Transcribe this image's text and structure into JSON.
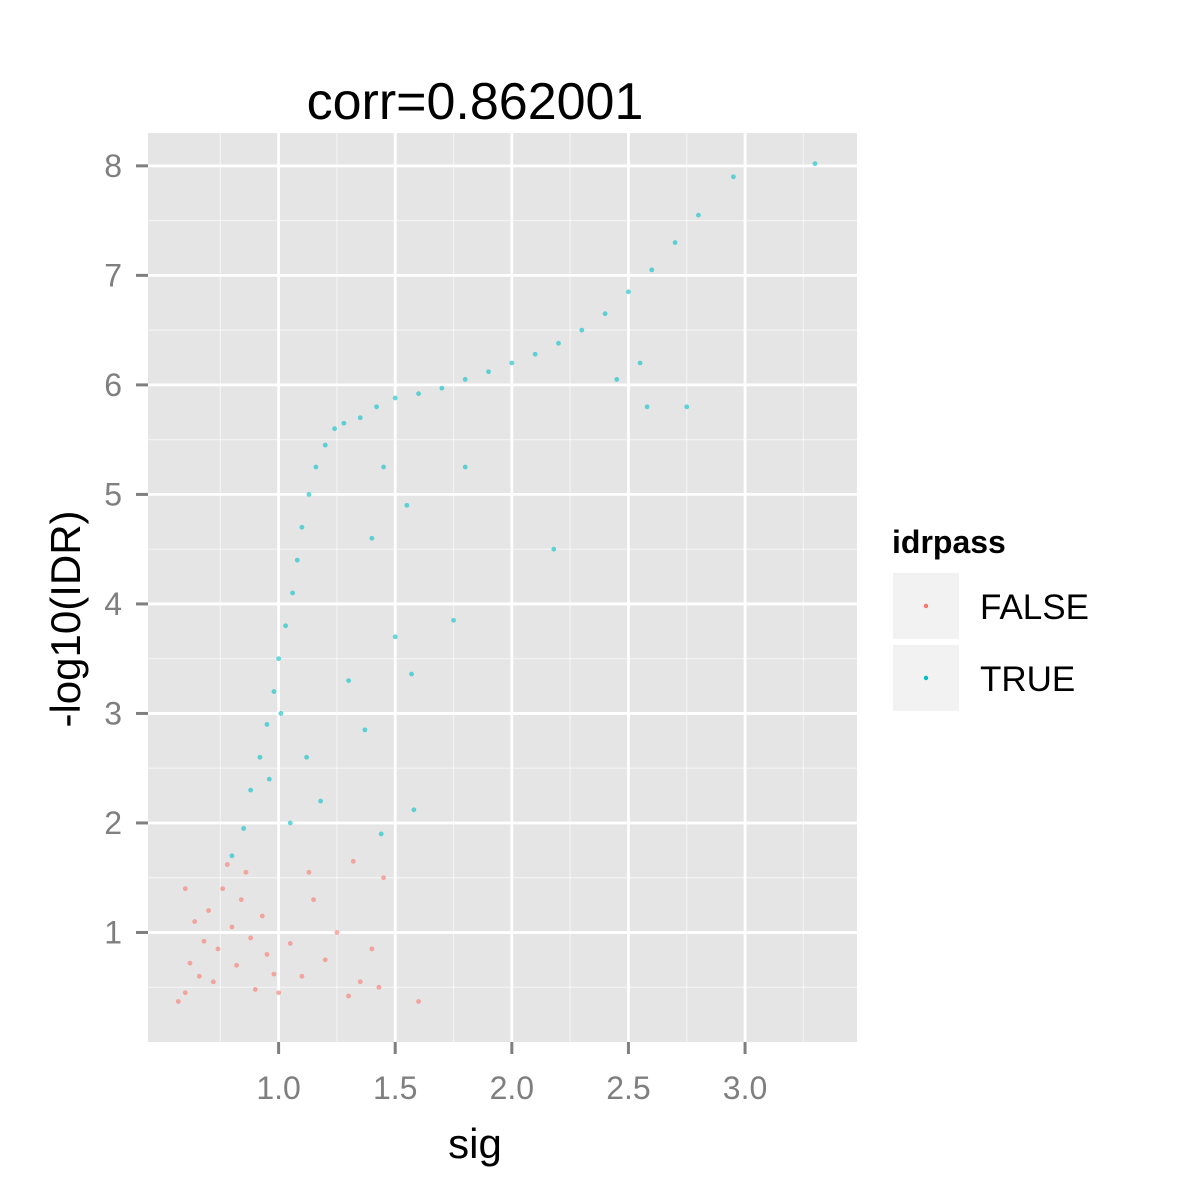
{
  "chart_data": {
    "type": "scatter",
    "title": "corr=0.862001",
    "xlabel": "sig",
    "ylabel": "-log10(IDR)",
    "xlim": [
      0.44,
      3.48
    ],
    "ylim": [
      0.0,
      8.3
    ],
    "x_ticks": [
      1.0,
      1.5,
      2.0,
      2.5,
      3.0
    ],
    "x_tick_labels": [
      "1.0",
      "1.5",
      "2.0",
      "2.5",
      "3.0"
    ],
    "y_ticks": [
      1,
      2,
      3,
      4,
      5,
      6,
      7,
      8
    ],
    "y_tick_labels": [
      "1",
      "2",
      "3",
      "4",
      "5",
      "6",
      "7",
      "8"
    ],
    "grid": true,
    "panel_background": "#e5e5e5",
    "grid_color": "#ffffff",
    "legend": {
      "title": "idrpass",
      "position": "right",
      "entries": [
        {
          "label": "FALSE",
          "color": "#f8766d"
        },
        {
          "label": "TRUE",
          "color": "#00bfc4"
        }
      ]
    },
    "series": [
      {
        "name": "FALSE",
        "color": "#f8766d",
        "points": [
          [
            0.57,
            0.37
          ],
          [
            0.6,
            0.45
          ],
          [
            0.62,
            0.72
          ],
          [
            0.64,
            1.1
          ],
          [
            0.66,
            0.6
          ],
          [
            0.68,
            0.92
          ],
          [
            0.7,
            1.2
          ],
          [
            0.72,
            0.55
          ],
          [
            0.74,
            0.85
          ],
          [
            0.76,
            1.4
          ],
          [
            0.78,
            1.62
          ],
          [
            0.8,
            1.05
          ],
          [
            0.82,
            0.7
          ],
          [
            0.84,
            1.3
          ],
          [
            0.86,
            1.55
          ],
          [
            0.88,
            0.95
          ],
          [
            0.9,
            0.48
          ],
          [
            0.93,
            1.15
          ],
          [
            0.95,
            0.8
          ],
          [
            0.98,
            0.62
          ],
          [
            1.0,
            0.45
          ],
          [
            1.05,
            0.9
          ],
          [
            1.1,
            0.6
          ],
          [
            1.15,
            1.3
          ],
          [
            1.2,
            0.75
          ],
          [
            1.25,
            1.0
          ],
          [
            1.3,
            0.42
          ],
          [
            1.35,
            0.55
          ],
          [
            1.4,
            0.85
          ],
          [
            1.43,
            0.5
          ],
          [
            1.6,
            0.37
          ],
          [
            1.45,
            1.5
          ],
          [
            1.32,
            1.65
          ],
          [
            1.13,
            1.55
          ],
          [
            0.6,
            1.4
          ]
        ]
      },
      {
        "name": "TRUE",
        "color": "#00bfc4",
        "points": [
          [
            0.8,
            1.7
          ],
          [
            0.85,
            1.95
          ],
          [
            0.88,
            2.3
          ],
          [
            0.92,
            2.6
          ],
          [
            0.95,
            2.9
          ],
          [
            0.98,
            3.2
          ],
          [
            1.0,
            3.5
          ],
          [
            1.03,
            3.8
          ],
          [
            1.06,
            4.1
          ],
          [
            1.08,
            4.4
          ],
          [
            1.1,
            4.7
          ],
          [
            1.13,
            5.0
          ],
          [
            1.16,
            5.25
          ],
          [
            1.2,
            5.45
          ],
          [
            1.24,
            5.6
          ],
          [
            1.28,
            5.65
          ],
          [
            1.35,
            5.7
          ],
          [
            1.42,
            5.8
          ],
          [
            1.5,
            5.88
          ],
          [
            1.6,
            5.92
          ],
          [
            1.7,
            5.97
          ],
          [
            1.8,
            6.05
          ],
          [
            1.9,
            6.12
          ],
          [
            2.0,
            6.2
          ],
          [
            2.1,
            6.28
          ],
          [
            2.2,
            6.38
          ],
          [
            2.3,
            6.5
          ],
          [
            2.4,
            6.65
          ],
          [
            2.5,
            6.85
          ],
          [
            2.6,
            7.05
          ],
          [
            2.7,
            7.3
          ],
          [
            2.8,
            7.55
          ],
          [
            2.95,
            7.9
          ],
          [
            3.3,
            8.02
          ],
          [
            2.58,
            5.8
          ],
          [
            2.75,
            5.8
          ],
          [
            2.18,
            4.5
          ],
          [
            1.75,
            3.85
          ],
          [
            1.58,
            2.12
          ],
          [
            1.57,
            3.36
          ],
          [
            1.5,
            3.7
          ],
          [
            1.44,
            1.9
          ],
          [
            1.37,
            2.85
          ],
          [
            1.3,
            3.3
          ],
          [
            1.18,
            2.2
          ],
          [
            1.12,
            2.6
          ],
          [
            1.05,
            2.0
          ],
          [
            1.01,
            3.0
          ],
          [
            0.96,
            2.4
          ],
          [
            1.4,
            4.6
          ],
          [
            1.55,
            4.9
          ],
          [
            1.45,
            5.25
          ],
          [
            1.8,
            5.25
          ],
          [
            2.45,
            6.05
          ],
          [
            2.55,
            6.2
          ]
        ]
      }
    ]
  }
}
